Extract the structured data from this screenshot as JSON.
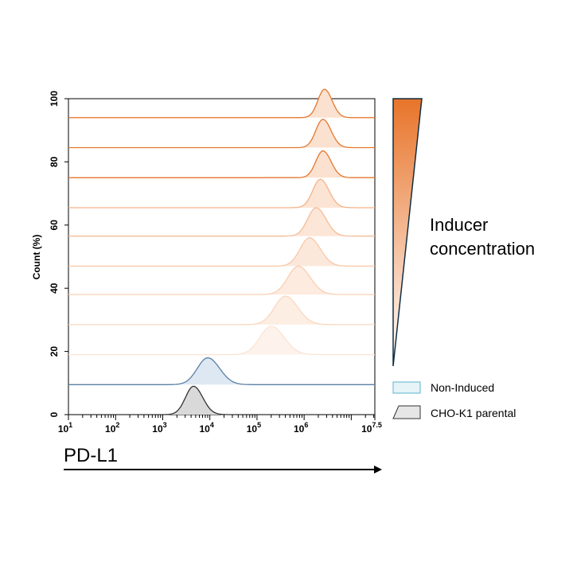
{
  "chart_data": {
    "type": "histogram-overlay",
    "ylabel": "Count (%)",
    "xlabel": "PD-L1",
    "x_scale": "log",
    "x_range": [
      10,
      31622777
    ],
    "y_range": [
      0,
      100
    ],
    "y_ticks": [
      0,
      20,
      40,
      60,
      80,
      100
    ],
    "x_ticks": [
      {
        "base": "10",
        "exp": "1"
      },
      {
        "base": "10",
        "exp": "2"
      },
      {
        "base": "10",
        "exp": "3"
      },
      {
        "base": "10",
        "exp": "4"
      },
      {
        "base": "10",
        "exp": "5"
      },
      {
        "base": "10",
        "exp": "6"
      },
      {
        "base": "10",
        "exp": "7.5"
      }
    ],
    "series": [
      {
        "name": "CHO-K1 parental",
        "offset": 0,
        "peak_x": 4500,
        "height": 9.0,
        "width": 0.17,
        "stroke": "#333333",
        "fill": "#d9d9d9"
      },
      {
        "name": "Non-Induced",
        "offset": 9.5,
        "peak_x": 9000,
        "height": 8.5,
        "width": 0.22,
        "stroke": "#5b7fa6",
        "fill": "#dde8f3"
      },
      {
        "offset": 19,
        "peak_x": 200000,
        "height": 9.0,
        "width": 0.24,
        "stroke": "#fbe4d4",
        "fill": "#fdf3ec"
      },
      {
        "offset": 28.5,
        "peak_x": 400000,
        "height": 9.0,
        "width": 0.23,
        "stroke": "#f9d7bf",
        "fill": "#fdeee3"
      },
      {
        "offset": 38,
        "peak_x": 750000,
        "height": 9.0,
        "width": 0.22,
        "stroke": "#f8cfb2",
        "fill": "#fdebdf"
      },
      {
        "offset": 47,
        "peak_x": 1300000,
        "height": 9.0,
        "width": 0.2,
        "stroke": "#f7c7a6",
        "fill": "#fce8db"
      },
      {
        "offset": 56.5,
        "peak_x": 1800000,
        "height": 9.0,
        "width": 0.18,
        "stroke": "#f5bd97",
        "fill": "#fce6d7"
      },
      {
        "offset": 65.5,
        "peak_x": 2200000,
        "height": 9.0,
        "width": 0.16,
        "stroke": "#f3b387",
        "fill": "#fce4d4"
      },
      {
        "offset": 75,
        "peak_x": 2500000,
        "height": 8.5,
        "width": 0.15,
        "stroke": "#e5782f",
        "fill": "#fbe1cf"
      },
      {
        "offset": 84.5,
        "peak_x": 2500000,
        "height": 9.0,
        "width": 0.15,
        "stroke": "#e5782f",
        "fill": "#fbe1cf"
      },
      {
        "offset": 94,
        "peak_x": 2700000,
        "height": 9.0,
        "width": 0.14,
        "stroke": "#e5782f",
        "fill": "#fbe1cf"
      }
    ],
    "legend": [
      {
        "label": "Non-Induced",
        "fill": "#e6f3f7",
        "stroke": "#5ab4cf"
      },
      {
        "label": "CHO-K1 parental",
        "fill": "#e6e6e6",
        "stroke": "#333333"
      }
    ],
    "gradient_wedge": {
      "label_line1": "Inducer",
      "label_line2": "concentration",
      "top_color": "#e8742a",
      "bottom_color": "#ffffff",
      "outline": "#0f2f44"
    }
  }
}
